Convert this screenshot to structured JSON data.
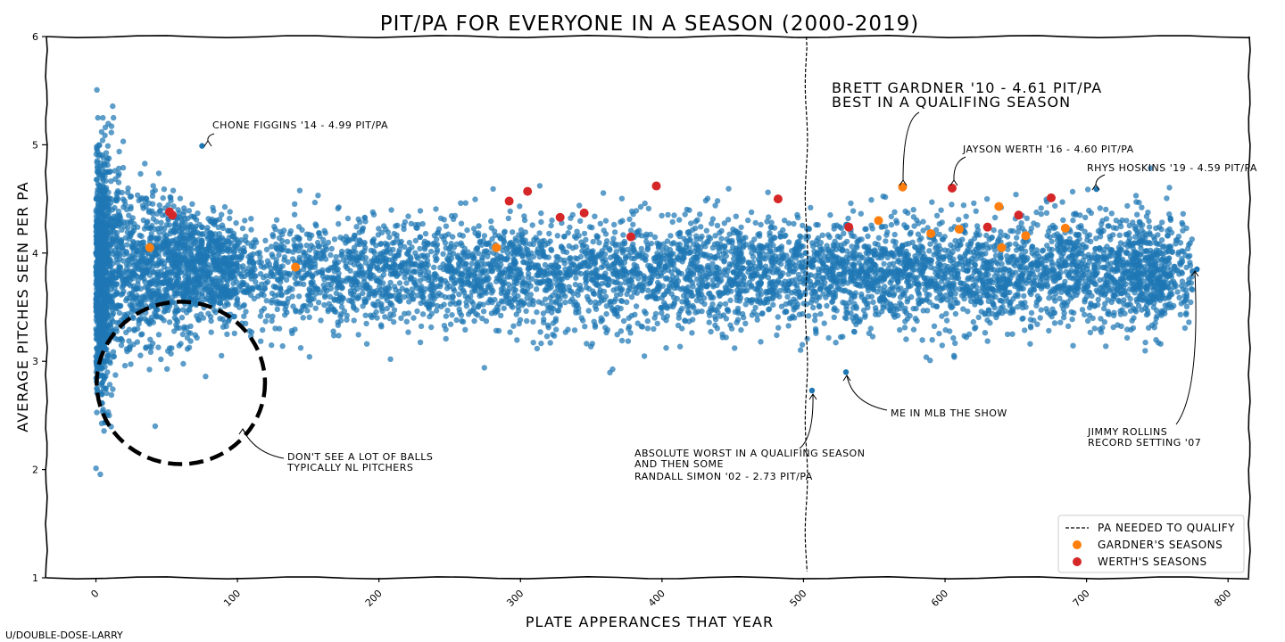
{
  "chart_data": {
    "type": "scatter",
    "title": "PIT/PA FOR EVERYONE IN A SEASON (2000-2019)",
    "xlabel": "PLATE APPERANCES THAT YEAR",
    "ylabel": "AVERAGE PITCHES SEEN PER PA",
    "xlim": [
      -35,
      815
    ],
    "ylim": [
      1,
      6
    ],
    "xticks": [
      0,
      100,
      200,
      300,
      400,
      500,
      600,
      700,
      800
    ],
    "yticks": [
      1,
      2,
      3,
      4,
      5,
      6
    ],
    "grid": false,
    "legend_position": "bottom-right",
    "qualify_line": {
      "x": 502,
      "label": "PA NEEDED TO QUALIFY"
    },
    "colors": {
      "everyone": "#1f77b4",
      "gardner": "#ff7f0e",
      "werth": "#d62728",
      "qualify_line": "#000000"
    },
    "series": [
      {
        "name": "GARDNER'S SEASONS",
        "x": [
          38,
          141,
          283,
          570,
          553,
          590,
          610,
          638,
          640,
          657,
          685
        ],
        "y": [
          4.05,
          3.87,
          4.05,
          4.61,
          4.3,
          4.18,
          4.22,
          4.43,
          4.05,
          4.16,
          4.23
        ]
      },
      {
        "name": "WERTH'S SEASONS",
        "x": [
          52,
          54,
          292,
          305,
          328,
          345,
          378,
          396,
          482,
          532,
          605,
          630,
          652,
          675
        ],
        "y": [
          4.38,
          4.35,
          4.48,
          4.57,
          4.33,
          4.37,
          4.15,
          4.62,
          4.5,
          4.24,
          4.6,
          4.24,
          4.35,
          4.51
        ]
      }
    ],
    "everyone_highlights": [
      {
        "x": 75,
        "y": 4.99
      },
      {
        "x": 707,
        "y": 4.59
      },
      {
        "x": 506,
        "y": 2.73
      },
      {
        "x": 530,
        "y": 2.9
      },
      {
        "x": 778,
        "y": 3.85
      }
    ],
    "annotations": [
      {
        "text": "CHONE FIGGINS '14 - 4.99 PIT/PA"
      },
      {
        "text": "BRETT GARDNER '10 - 4.61 PIT/PA"
      },
      {
        "text": "BEST IN A QUALIFING SEASON"
      },
      {
        "text": "JAYSON WERTH '16 - 4.60 PIT/PA"
      },
      {
        "text": "RHYS HOSKINS '19 - 4.59 PIT/PA"
      },
      {
        "text": "ME IN MLB THE SHOW"
      },
      {
        "text": "JIMMY ROLLINS"
      },
      {
        "text": "RECORD SETTING '07"
      },
      {
        "text": "ABSOLUTE WORST IN A QUALIFING SEASON"
      },
      {
        "text": "AND THEN SOME"
      },
      {
        "text": "RANDALL SIMON '02 - 2.73 PIT/PA"
      },
      {
        "text": "DON'T SEE A LOT OF BALLS"
      },
      {
        "text": "TYPICALLY NL PITCHERS"
      }
    ],
    "circled_region": {
      "x_range": [
        10,
        110
      ],
      "y_range": [
        2.05,
        3.55
      ]
    }
  },
  "credit": "U/DOUBLE-DOSE-LARRY"
}
